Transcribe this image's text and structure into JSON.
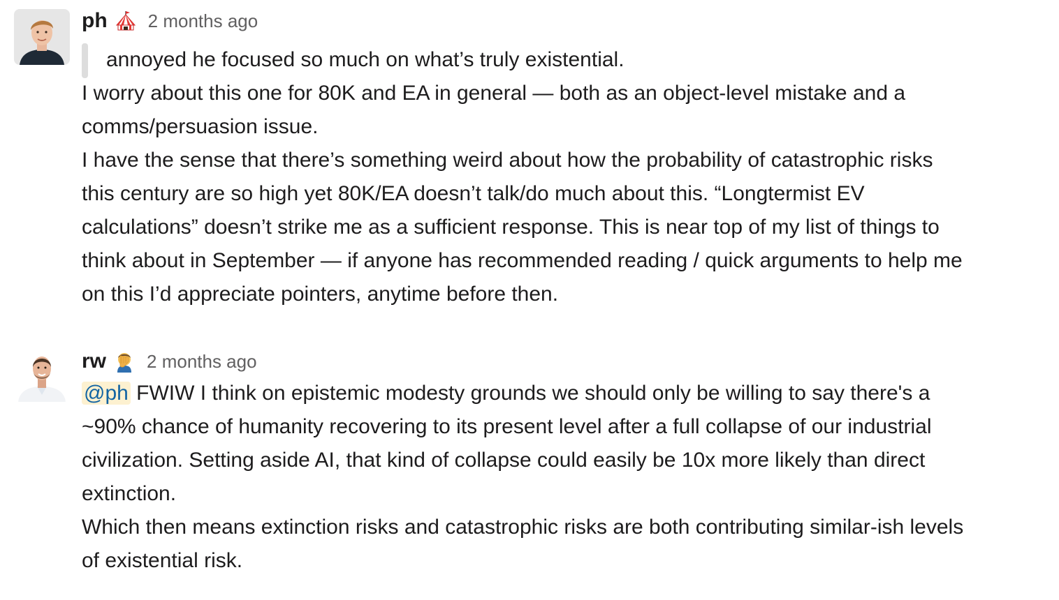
{
  "messages": [
    {
      "author": "ph",
      "status_emoji": "circus-tent-icon",
      "timestamp": "2 months ago",
      "quote": "annoyed he focused so much on what’s truly existential.",
      "paragraphs": [
        [
          "I worry about this one for 80K and EA in general — both as an object-level mistake and a",
          "comms/persuasion issue."
        ],
        [
          "I have the sense that there’s something weird about how the probability of catastrophic risks",
          "this century are so high yet 80K/EA doesn’t talk/do much about this. “Longtermist EV",
          "calculations” doesn’t strike me as a sufficient response. This is near top of my list of things to",
          "think about in September — if anyone has recommended reading / quick arguments to help me",
          "on this I’d appreciate pointers, anytime before then."
        ]
      ]
    },
    {
      "author": "rw",
      "status_emoji": "face-palm-icon",
      "timestamp": "2 months ago",
      "mention": "@ph",
      "paragraphs": [
        [
          " FWIW I think on epistemic modesty grounds we should only be willing to say there's a",
          "~90% chance of humanity recovering to its present level after a full collapse of our industrial",
          "civilization. Setting aside AI, that kind of collapse could easily be 10x more likely than direct",
          "extinction."
        ],
        [
          "Which then means extinction risks and catastrophic risks are both contributing similar-ish levels",
          "of existential risk."
        ]
      ]
    }
  ],
  "colors": {
    "mention_bg": "#fdf1d0",
    "mention_text": "#1264a3",
    "quote_bar": "#dddddd",
    "timestamp": "#616061",
    "text": "#1d1c1d"
  }
}
